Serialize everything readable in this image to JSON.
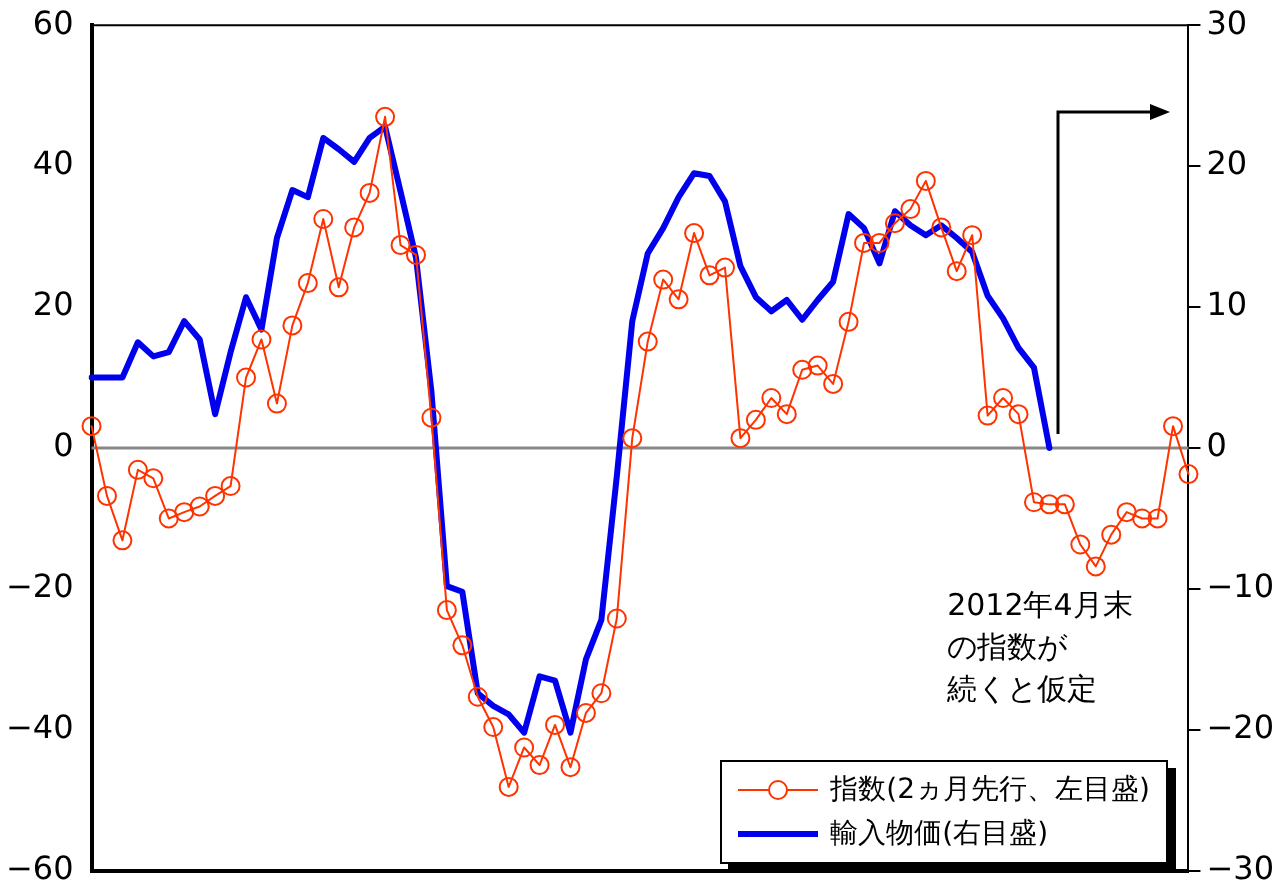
{
  "chart_data": {
    "type": "line",
    "categories": [
      null,
      null,
      null,
      null,
      null,
      null,
      null,
      null,
      null,
      null,
      null,
      null,
      null,
      null,
      null,
      null,
      null,
      null,
      null,
      null,
      null,
      null,
      null,
      null,
      null,
      null,
      null,
      null,
      null,
      null,
      null,
      null,
      null,
      null,
      null,
      null,
      null,
      null,
      null,
      null,
      null,
      null,
      null,
      null,
      null,
      null,
      null,
      null,
      null,
      null,
      null,
      null,
      null,
      null,
      null,
      null,
      null,
      null,
      null,
      null,
      null,
      null,
      null,
      null,
      null,
      null,
      null,
      null,
      null,
      null,
      null,
      null
    ],
    "series": [
      {
        "name": "指数(2ヵ月先行、左目盛)",
        "color": "#ff3300",
        "marker": "circle",
        "axis": "y",
        "values": [
          3.1,
          -6.8,
          -13.1,
          -3.1,
          -4.3,
          -10,
          -9.1,
          -8.3,
          -6.8,
          -5.4,
          10,
          15.4,
          6.3,
          17.4,
          23.4,
          32.5,
          22.8,
          31.3,
          36.2,
          47,
          28.8,
          27.4,
          4.3,
          -23,
          -28,
          -35.3,
          -39.6,
          -48.1,
          -42.5,
          -45,
          -39.3,
          -45.3,
          -37.6,
          -34.8,
          -24.2,
          1.4,
          15.1,
          23.9,
          21.1,
          30.5,
          24.5,
          25.6,
          1.4,
          4,
          7.1,
          4.8,
          11.1,
          11.7,
          9.1,
          17.9,
          29.1,
          29.1,
          31.9,
          33.9,
          37.9,
          31.3,
          25.1,
          30.2,
          4.6,
          7.1,
          4.8,
          -7.7,
          -8,
          -8,
          -13.7,
          -16.8,
          -12.3,
          -9.1,
          -10,
          -10,
          3.1,
          -3.7
        ]
      },
      {
        "name": "輸入物価(右目盛)",
        "color": "#0000ee",
        "marker": "none",
        "axis": "y2",
        "values": [
          5,
          5,
          5,
          7.5,
          6.5,
          6.8,
          9,
          7.7,
          2.4,
          6.8,
          10.7,
          8.4,
          14.9,
          18.3,
          17.8,
          22,
          21.2,
          20.3,
          22,
          22.8,
          18.2,
          13.5,
          4,
          -9.8,
          -10.2,
          -17.4,
          -18.3,
          -18.9,
          -20.2,
          -16.2,
          -16.5,
          -20.2,
          -15,
          -12.2,
          -2,
          9,
          13.8,
          15.6,
          17.8,
          19.5,
          19.3,
          17.5,
          12.9,
          10.7,
          9.7,
          10.5,
          9.1,
          10.5,
          11.8,
          16.6,
          15.6,
          13.1,
          16.8,
          15.8,
          15.1,
          15.8,
          14.9,
          13.9,
          10.8,
          9.2,
          7.1,
          5.7,
          0,
          null,
          null,
          null,
          null,
          null,
          null,
          null,
          null,
          null
        ]
      }
    ],
    "ylim": [
      -60,
      60
    ],
    "yticks": [
      -60,
      -40,
      -20,
      0,
      20,
      40,
      60
    ],
    "y2lim": [
      -30,
      30
    ],
    "y2ticks": [
      -30,
      -20,
      -10,
      0,
      10,
      20,
      30
    ],
    "ref_lines": [
      {
        "axis": "y",
        "value": 0,
        "color": "#888888"
      }
    ],
    "annotations": [
      "2012年4月末",
      "の指数が",
      "続くと仮定"
    ],
    "legend": "bottom right",
    "grid": false,
    "tick_labels": "y"
  }
}
